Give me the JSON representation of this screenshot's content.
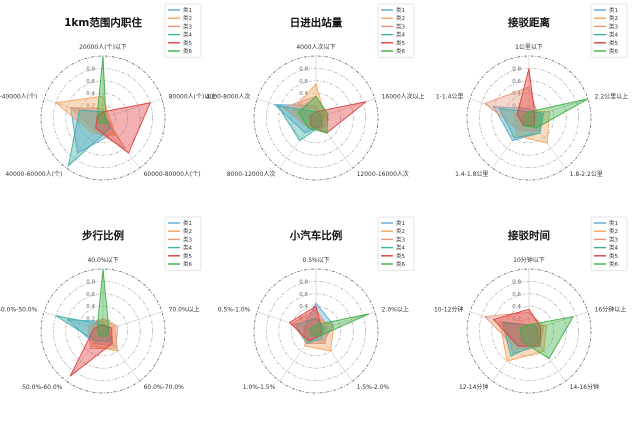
{
  "chart_data": [
    {
      "type": "radar",
      "title": "1km范围内职住",
      "axes": [
        "20000人(个)以下",
        "80000人(个)以上",
        "60000-80000人(个)",
        "40000-60000人(个)",
        "20000-40000人(个)"
      ],
      "ticks": [
        0.2,
        0.4,
        0.6,
        0.8
      ],
      "rmax": 1.0,
      "series": [
        {
          "name": "类1",
          "color": "#5aa7d6",
          "values": [
            0.1,
            0.05,
            0.3,
            0.7,
            0.55
          ]
        },
        {
          "name": "类2",
          "color": "#f4a460",
          "values": [
            0.35,
            0.1,
            0.35,
            0.3,
            0.8
          ]
        },
        {
          "name": "类3",
          "color": "#e9967a",
          "values": [
            0.15,
            0.05,
            0.6,
            0.25,
            0.55
          ]
        },
        {
          "name": "类4",
          "color": "#40b0a6",
          "values": [
            0.1,
            0.05,
            0.2,
            0.95,
            0.4
          ]
        },
        {
          "name": "类5",
          "color": "#e03c3c",
          "values": [
            0.1,
            0.8,
            0.7,
            0.2,
            0.1
          ]
        },
        {
          "name": "类6",
          "color": "#3cb043",
          "values": [
            1.0,
            0.05,
            0.1,
            0.1,
            0.1
          ]
        }
      ]
    },
    {
      "type": "radar",
      "title": "日进出站量",
      "axes": [
        "4000人次以下",
        "16000人次以上",
        "12000-16000人次",
        "8000-12000人次",
        "4000-8000人次"
      ],
      "ticks": [
        0.2,
        0.4,
        0.6,
        0.8
      ],
      "rmax": 1.0,
      "series": [
        {
          "name": "类1",
          "color": "#5aa7d6",
          "values": [
            0.2,
            0.1,
            0.15,
            0.3,
            0.7
          ]
        },
        {
          "name": "类2",
          "color": "#f4a460",
          "values": [
            0.55,
            0.15,
            0.15,
            0.2,
            0.4
          ]
        },
        {
          "name": "类3",
          "color": "#e9967a",
          "values": [
            0.35,
            0.2,
            0.2,
            0.2,
            0.55
          ]
        },
        {
          "name": "类4",
          "color": "#40b0a6",
          "values": [
            0.1,
            0.1,
            0.15,
            0.45,
            0.65
          ]
        },
        {
          "name": "类5",
          "color": "#e03c3c",
          "values": [
            0.1,
            0.85,
            0.3,
            0.15,
            0.1
          ]
        },
        {
          "name": "类6",
          "color": "#3cb043",
          "values": [
            0.35,
            0.2,
            0.3,
            0.2,
            0.3
          ]
        }
      ]
    },
    {
      "type": "radar",
      "title": "接驳距离",
      "axes": [
        "1公里以下",
        "2.2公里以上",
        "1.8-2.2公里",
        "1.4-1.8公里",
        "1-1.4公里"
      ],
      "ticks": [
        0.2,
        0.4,
        0.6,
        0.8
      ],
      "rmax": 1.0,
      "series": [
        {
          "name": "类1",
          "color": "#5aa7d6",
          "values": [
            0.15,
            0.2,
            0.3,
            0.45,
            0.6
          ]
        },
        {
          "name": "类2",
          "color": "#f4a460",
          "values": [
            0.1,
            0.35,
            0.5,
            0.35,
            0.25
          ]
        },
        {
          "name": "类3",
          "color": "#e9967a",
          "values": [
            0.5,
            0.15,
            0.25,
            0.25,
            0.75
          ]
        },
        {
          "name": "类4",
          "color": "#40b0a6",
          "values": [
            0.1,
            0.25,
            0.3,
            0.4,
            0.5
          ]
        },
        {
          "name": "类5",
          "color": "#e03c3c",
          "values": [
            0.8,
            0.1,
            0.15,
            0.15,
            0.2
          ]
        },
        {
          "name": "类6",
          "color": "#3cb043",
          "values": [
            0.1,
            1.0,
            0.2,
            0.15,
            0.1
          ]
        }
      ]
    },
    {
      "type": "radar",
      "title": "步行比例",
      "axes": [
        "40.0%以下",
        "70.0%以上",
        "60.0%-70.0%",
        "50.0%-60.0%",
        "40.0%-50.0%"
      ],
      "ticks": [
        0.2,
        0.4,
        0.6,
        0.8
      ],
      "rmax": 1.0,
      "series": [
        {
          "name": "类1",
          "color": "#5aa7d6",
          "values": [
            0.15,
            0.1,
            0.3,
            0.25,
            0.6
          ]
        },
        {
          "name": "类2",
          "color": "#f4a460",
          "values": [
            0.2,
            0.2,
            0.4,
            0.3,
            0.2
          ]
        },
        {
          "name": "类3",
          "color": "#e9967a",
          "values": [
            0.2,
            0.25,
            0.35,
            0.35,
            0.25
          ]
        },
        {
          "name": "类4",
          "color": "#40b0a6",
          "values": [
            0.1,
            0.1,
            0.2,
            0.2,
            0.8
          ]
        },
        {
          "name": "类5",
          "color": "#e03c3c",
          "values": [
            0.1,
            0.15,
            0.25,
            0.9,
            0.15
          ]
        },
        {
          "name": "类6",
          "color": "#3cb043",
          "values": [
            1.0,
            0.1,
            0.1,
            0.1,
            0.1
          ]
        }
      ]
    },
    {
      "type": "radar",
      "title": "小汽车比例",
      "axes": [
        "0.5%以下",
        "2.0%以上",
        "1.5%-2.0%",
        "1.0%-1.5%",
        "0.5%-1.0%"
      ],
      "ticks": [
        0.2,
        0.4,
        0.6,
        0.8
      ],
      "rmax": 1.0,
      "series": [
        {
          "name": "类1",
          "color": "#5aa7d6",
          "values": [
            0.45,
            0.3,
            0.2,
            0.2,
            0.2
          ]
        },
        {
          "name": "类2",
          "color": "#f4a460",
          "values": [
            0.2,
            0.3,
            0.4,
            0.3,
            0.2
          ]
        },
        {
          "name": "类3",
          "color": "#e9967a",
          "values": [
            0.35,
            0.2,
            0.25,
            0.25,
            0.4
          ]
        },
        {
          "name": "类4",
          "color": "#40b0a6",
          "values": [
            0.2,
            0.15,
            0.15,
            0.25,
            0.35
          ]
        },
        {
          "name": "类5",
          "color": "#e03c3c",
          "values": [
            0.4,
            0.1,
            0.1,
            0.2,
            0.45
          ]
        },
        {
          "name": "类6",
          "color": "#3cb043",
          "values": [
            0.1,
            0.9,
            0.1,
            0.1,
            0.1
          ]
        }
      ]
    },
    {
      "type": "radar",
      "title": "接驳时间",
      "axes": [
        "10分钟以下",
        "16分钟以上",
        "14-16分钟",
        "12-14分钟",
        "10-12分钟"
      ],
      "ticks": [
        0.2,
        0.4,
        0.6,
        0.8
      ],
      "rmax": 1.0,
      "series": [
        {
          "name": "类1",
          "color": "#5aa7d6",
          "values": [
            0.1,
            0.2,
            0.3,
            0.45,
            0.4
          ]
        },
        {
          "name": "类2",
          "color": "#f4a460",
          "values": [
            0.1,
            0.3,
            0.4,
            0.6,
            0.5
          ]
        },
        {
          "name": "类3",
          "color": "#e9967a",
          "values": [
            0.3,
            0.25,
            0.3,
            0.35,
            0.75
          ]
        },
        {
          "name": "类4",
          "color": "#40b0a6",
          "values": [
            0.1,
            0.15,
            0.25,
            0.5,
            0.45
          ]
        },
        {
          "name": "类5",
          "color": "#e03c3c",
          "values": [
            0.35,
            0.2,
            0.3,
            0.3,
            0.6
          ]
        },
        {
          "name": "类6",
          "color": "#3cb043",
          "values": [
            0.1,
            0.75,
            0.55,
            0.2,
            0.15
          ]
        }
      ]
    }
  ]
}
